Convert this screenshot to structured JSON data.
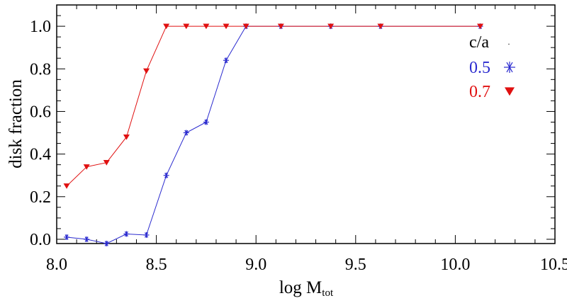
{
  "chart_data": {
    "type": "line",
    "title": "",
    "xlabel": "log M",
    "xlabel_sub": "tot",
    "ylabel": "disk fraction",
    "xlim": [
      8.0,
      10.5
    ],
    "ylim": [
      -0.02,
      1.1
    ],
    "xticks": [
      8.0,
      8.5,
      9.0,
      9.5,
      10.0,
      10.5
    ],
    "xtick_labels": [
      "8.0",
      "8.5",
      "9.0",
      "9.5",
      "10.0",
      "10.5"
    ],
    "yticks": [
      0.0,
      0.2,
      0.4,
      0.6,
      0.8,
      1.0
    ],
    "ytick_labels": [
      "0.0",
      "0.2",
      "0.4",
      "0.6",
      "0.8",
      "1.0"
    ],
    "legend": {
      "title": "c/a",
      "position": "top-right"
    },
    "series": [
      {
        "name": "0.5",
        "color": "#2b2bcf",
        "marker": "asterisk",
        "x": [
          8.05,
          8.15,
          8.25,
          8.35,
          8.45,
          8.55,
          8.65,
          8.75,
          8.85,
          8.95,
          9.125,
          9.375,
          9.625,
          10.125
        ],
        "y": [
          0.01,
          0.0,
          -0.02,
          0.025,
          0.02,
          0.3,
          0.5,
          0.55,
          0.84,
          1.0,
          1.0,
          1.0,
          1.0,
          1.0
        ]
      },
      {
        "name": "0.7",
        "color": "#e01010",
        "marker": "triangle-down",
        "x": [
          8.05,
          8.15,
          8.25,
          8.35,
          8.45,
          8.55,
          8.65,
          8.75,
          8.85,
          8.95,
          9.125,
          9.375,
          9.625,
          10.125
        ],
        "y": [
          0.25,
          0.34,
          0.36,
          0.48,
          0.79,
          1.0,
          1.0,
          1.0,
          1.0,
          1.0,
          1.0,
          1.0,
          1.0,
          1.0
        ]
      }
    ]
  }
}
